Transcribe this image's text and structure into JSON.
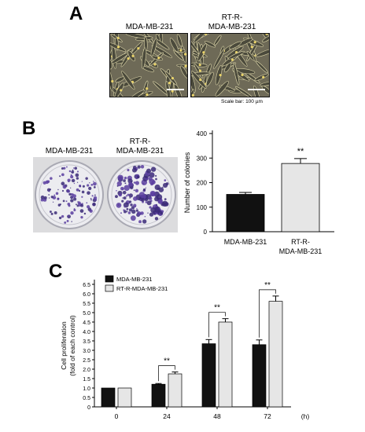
{
  "panels": {
    "A": {
      "letter": "A",
      "label_left": "MDA-MB-231",
      "label_right_l1": "RT-R-",
      "label_right_l2": "MDA-MB-231",
      "scale_text": "Scale bar: 100 µm"
    },
    "B": {
      "letter": "B",
      "dish_left": "MDA-MB-231",
      "dish_right_l1": "RT-R-",
      "dish_right_l2": "MDA-MB-231"
    },
    "C": {
      "letter": "C"
    }
  },
  "chart_data": [
    {
      "id": "colonies",
      "type": "bar",
      "ylabel": "Number of colonies",
      "ylim": [
        0,
        400
      ],
      "yticks": [
        0,
        100,
        200,
        300,
        400
      ],
      "categories": [
        "MDA-MB-231",
        "RT-R-MDA-MB-231"
      ],
      "category_labels": [
        [
          "MDA-MB-231"
        ],
        [
          "RT-R-",
          "MDA-MB-231"
        ]
      ],
      "values": [
        152,
        278
      ],
      "errors": [
        8,
        20
      ],
      "colors": [
        "#111111",
        "#e6e6e6"
      ],
      "significance": [
        null,
        "**"
      ]
    },
    {
      "id": "proliferation",
      "type": "bar",
      "ylabel_l1": "Cell proliferation",
      "ylabel_l2": "(fold of each control)",
      "ylim": [
        0,
        6.5
      ],
      "yticks": [
        "0",
        "0.5",
        "1.0",
        "1.5",
        "2.0",
        "2.5",
        "3.0",
        "3.5",
        "4.0",
        "4.5",
        "5.0",
        "5.5",
        "6.0",
        "6.5"
      ],
      "categories": [
        "0",
        "24",
        "48",
        "72"
      ],
      "x_unit": "(h)",
      "series": [
        {
          "name": "MDA-MB-231",
          "color": "#111111",
          "values": [
            1.0,
            1.2,
            3.35,
            3.3
          ],
          "errors": [
            0,
            0.04,
            0.22,
            0.25
          ]
        },
        {
          "name": "RT-R-MDA-MB-231",
          "color": "#e6e6e6",
          "values": [
            1.0,
            1.75,
            4.5,
            5.6
          ],
          "errors": [
            0,
            0.1,
            0.18,
            0.28
          ]
        }
      ],
      "significance": [
        null,
        "**",
        "**",
        "**"
      ],
      "legend_position": "top-left"
    }
  ]
}
